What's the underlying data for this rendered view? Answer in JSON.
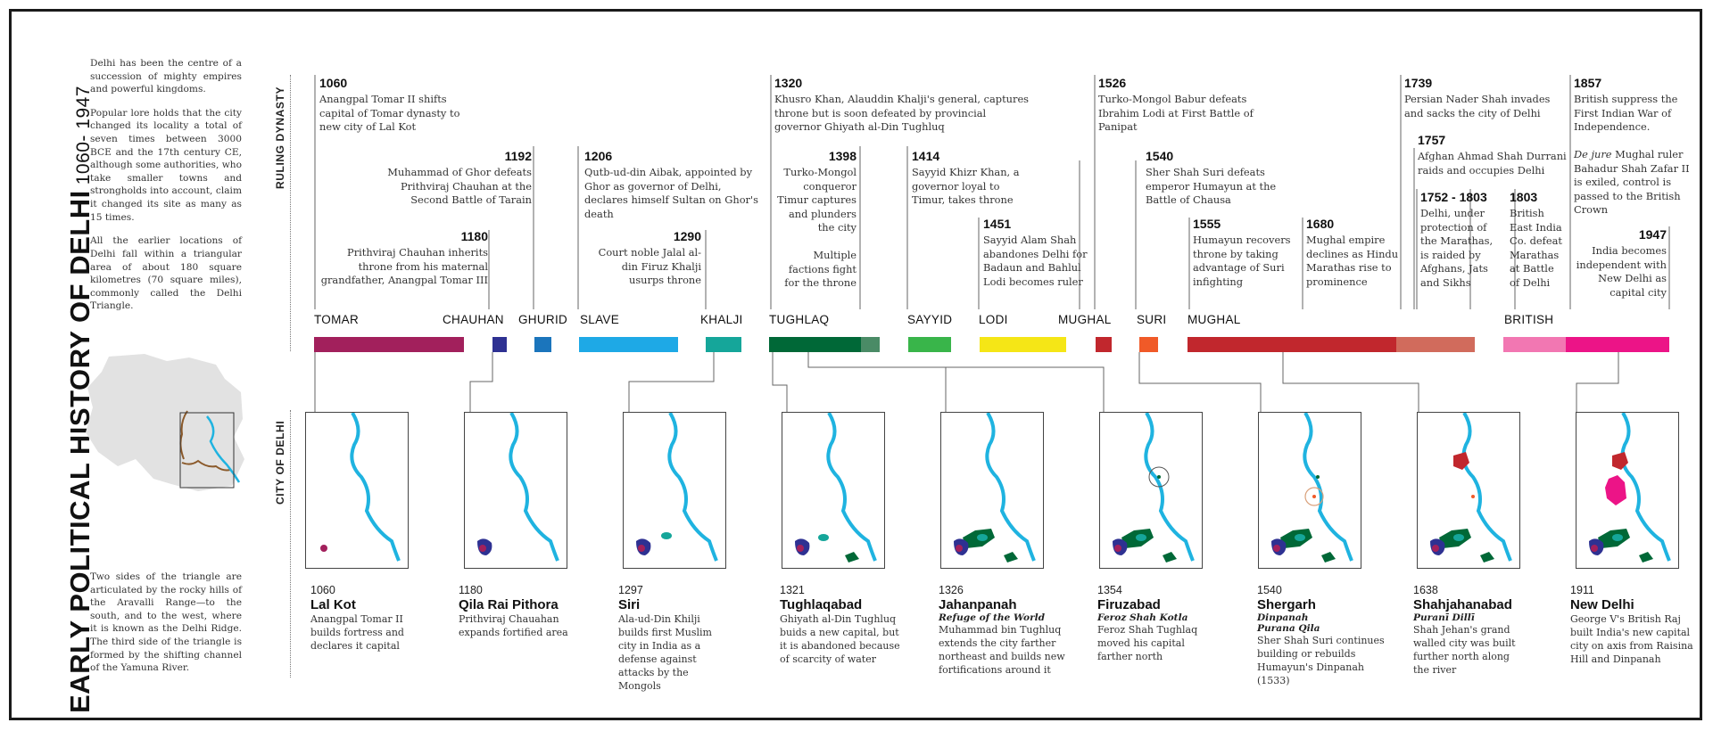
{
  "title": {
    "main": "EARLY POLITICAL HISTORY OF DELHI",
    "years": "1060- 1947"
  },
  "intro": [
    "Delhi has been the centre of a succession of mighty empires and powerful kingdoms.",
    "Popular lore holds that the city changed its locality a total of seven times between 3000 BCE and the 17th century CE, although some authorities, who take smaller towns and strongholds into account, claim it changed its site as many as 15 times.",
    "All the earlier locations of Delhi fall within a triangular area of about 180 square kilometres (70 square miles), commonly called the Delhi Triangle."
  ],
  "outro": "Two sides of the triangle are articulated by the rocky hills of the Aravalli Range—to the south, and to the west, where it is known as the Delhi Ridge. The third side of the triangle is formed by the shifting channel of the Yamuna River.",
  "labels": {
    "ruling": "RULING DYNASTY",
    "city": "CITY OF DELHI"
  },
  "events": [
    {
      "year": "1060",
      "text": "Anangpal Tomar II shifts capital of Tomar dynasty to new city of Lal Kot"
    },
    {
      "year": "1192",
      "text": "Muhammad of Ghor defeats Prithviraj Chauhan at the Second Battle of Tarain"
    },
    {
      "year": "1180",
      "text": "Prithviraj Chauhan inherits throne from his maternal grandfather, Anangpal Tomar III"
    },
    {
      "year": "1206",
      "text": "Qutb-ud-din Aibak, appointed by Ghor as governor of Delhi, declares himself Sultan on Ghor's death"
    },
    {
      "year": "1290",
      "text": "Court noble Jalal al-din Firuz Khalji usurps throne"
    },
    {
      "year": "1320",
      "text": "Khusro Khan, Alauddin Khalji's general, captures throne but is soon defeated by provincial governor Ghiyath al-Din Tughluq"
    },
    {
      "year": "1398",
      "text": "Turko-Mongol conqueror Timur captures and plunders the city",
      "extra": "Multiple factions fight for the throne"
    },
    {
      "year": "1414",
      "text": "Sayyid Khizr Khan, a governor loyal to Timur, takes throne"
    },
    {
      "year": "1451",
      "text": "Sayyid Alam Shah abandones Delhi for Badaun and Bahlul Lodi becomes ruler"
    },
    {
      "year": "1526",
      "text": "Turko-Mongol Babur defeats Ibrahim Lodi at First Battle of Panipat"
    },
    {
      "year": "1540",
      "text": "Sher Shah Suri defeats emperor Humayun at the Battle of Chausa"
    },
    {
      "year": "1555",
      "text": "Humayun recovers throne by taking advantage of Suri infighting"
    },
    {
      "year": "1680",
      "text": "Mughal empire declines as Hindu Marathas rise to prominence"
    },
    {
      "year": "1739",
      "text": "Persian Nader Shah invades and sacks the city of Delhi"
    },
    {
      "year": "1757",
      "text": "Afghan Ahmad Shah Durrani raids and occupies Delhi"
    },
    {
      "year": "1752 - 1803",
      "text": "Delhi, under protection of the Marathas, is raided by Afghans, Jats and Sikhs"
    },
    {
      "year": "1803",
      "text": "British East India Co. defeat Marathas at Battle of Delhi"
    },
    {
      "year": "1857",
      "text": "British suppress the First Indian War of Independence.",
      "extra_italic": "De jure",
      "extra": " Mughal ruler Bahadur Shah Zafar II is exiled, control is passed to the British Crown"
    },
    {
      "year": "1947",
      "text": "India becomes independent with New Delhi as capital city"
    }
  ],
  "dynasties": [
    "TOMAR",
    "CHAUHAN",
    "GHURID",
    "SLAVE",
    "KHALJI",
    "TUGHLAQ",
    "SAYYID",
    "LODI",
    "MUGHAL",
    "SURI",
    "MUGHAL",
    "BRITISH"
  ],
  "dynasty_colors": [
    "#a2205c",
    "#2e3192",
    "#1b75bc",
    "#1ea9e6",
    "#15a69a",
    "#006837",
    "#4a8b66",
    "#39b54a",
    "#f5e616",
    "#c1272d",
    "#f05a28",
    "#c1272d",
    "#d16b5c",
    "#f277b2",
    "#ec1487"
  ],
  "map_colors": {
    "river": "#1fb3e0",
    "land": "#e2e2e2",
    "route": "#8b5a2b"
  },
  "cities": [
    {
      "year": "1060",
      "name": "Lal Kot",
      "subtitle": "",
      "desc": "Anangpal Tomar II builds fortress and declares it capital"
    },
    {
      "year": "1180",
      "name": "Qila Rai Pithora",
      "subtitle": "",
      "desc": "Prithviraj Chauahan expands fortified area"
    },
    {
      "year": "1297",
      "name": "Siri",
      "subtitle": "",
      "desc": "Ala-ud-Din Khilji builds first Muslim city in India as a defense against attacks by the Mongols"
    },
    {
      "year": "1321",
      "name": "Tughlaqabad",
      "subtitle": "",
      "desc": "Ghiyath al-Din Tughluq buids a new capital, but it is abandoned because of scarcity of water"
    },
    {
      "year": "1326",
      "name": "Jahanpanah",
      "subtitle": "Refuge of the World",
      "desc": "Muhammad bin Tughluq extends the city farther northeast and builds new fortifications around it"
    },
    {
      "year": "1354",
      "name": "Firuzabad",
      "subtitle": "Feroz Shah Kotla",
      "desc": "Feroz Shah Tughlaq moved his capital farther north"
    },
    {
      "year": "1540",
      "name": "Shergarh",
      "subtitle": "Dinpanah",
      "subtitle2": "Purana Qila",
      "desc": "Sher Shah Suri continues building or rebuilds Humayun's Dinpanah (1533)"
    },
    {
      "year": "1638",
      "name": "Shahjahanabad",
      "subtitle": "Puranī Dillī",
      "desc": "Shah Jehan's grand walled city was built further north along the river"
    },
    {
      "year": "1911",
      "name": "New Delhi",
      "subtitle": "",
      "desc": "George V's British Raj built India's new capital city on axis from Raisina Hill and Dinpanah"
    }
  ]
}
